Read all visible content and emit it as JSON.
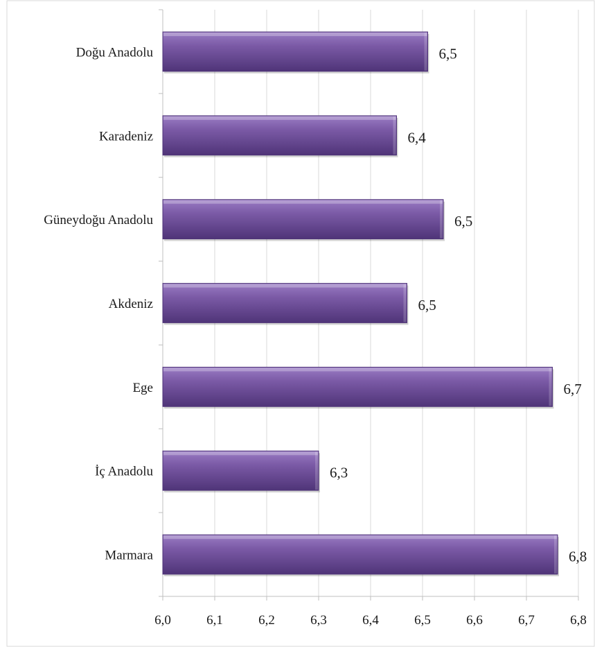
{
  "chart_data": {
    "type": "bar",
    "orientation": "horizontal",
    "title": "",
    "xlabel": "",
    "ylabel": "",
    "categories": [
      "Doğu Anadolu",
      "Karadeniz",
      "Güneydoğu Anadolu",
      "Akdeniz",
      "Ege",
      "İç Anadolu",
      "Marmara"
    ],
    "values": [
      6.51,
      6.45,
      6.54,
      6.47,
      6.75,
      6.3,
      6.76
    ],
    "value_labels": [
      "6,5",
      "6,4",
      "6,5",
      "6,5",
      "6,7",
      "6,3",
      "6,8"
    ],
    "xlim": [
      6.0,
      6.8
    ],
    "x_ticks": [
      6.0,
      6.1,
      6.2,
      6.3,
      6.4,
      6.5,
      6.6,
      6.7,
      6.8
    ],
    "x_tick_labels": [
      "6,0",
      "6,1",
      "6,2",
      "6,3",
      "6,4",
      "6,5",
      "6,6",
      "6,7",
      "6,8"
    ],
    "grid": true,
    "legend": "none",
    "bar_color": "#7b5aa6",
    "bar_color_light": "#9a7cc4",
    "bar_color_dark": "#4f3478",
    "grid_color": "#d9d9d9",
    "axis_color": "#bfbfbf"
  }
}
